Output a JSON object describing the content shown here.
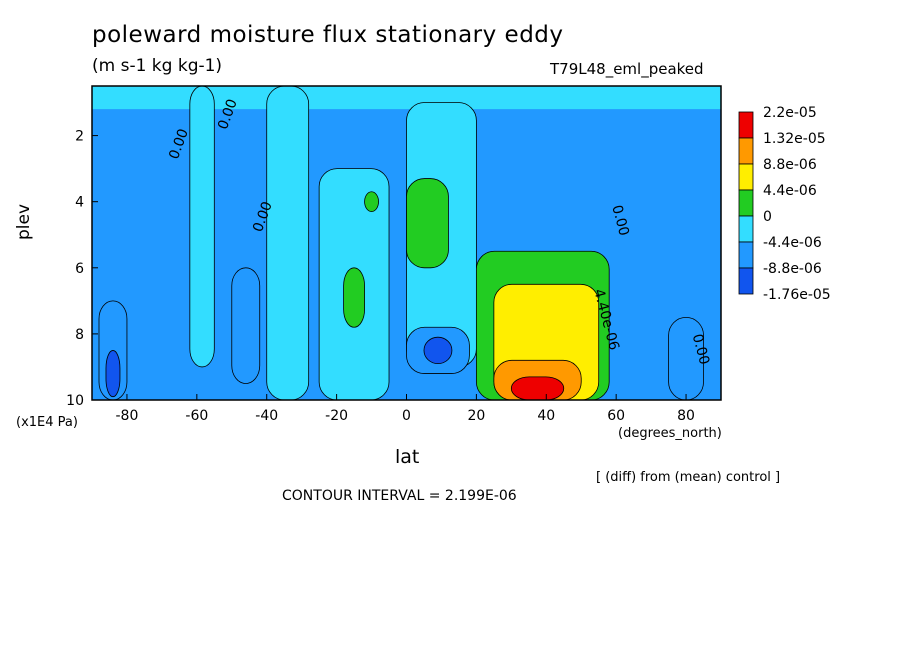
{
  "chart_data": {
    "type": "heatmap",
    "title": "poleward moisture flux stationary eddy",
    "units": "(m s-1 kg kg-1)",
    "experiment": "T79L48_eml_peaked",
    "xlabel": "lat",
    "xunits": "(degrees_north)",
    "ylabel": "plev",
    "yunits": "(x1E4 Pa)",
    "xlim": [
      -90,
      90
    ],
    "ylim": [
      0.5,
      10
    ],
    "y_inverted": true,
    "x_ticks": [
      -80,
      -60,
      -40,
      -20,
      0,
      20,
      40,
      60,
      80
    ],
    "y_ticks": [
      2,
      4,
      6,
      8,
      10
    ],
    "note": "[ (diff) from (mean) control ]",
    "contour_interval": "CONTOUR INTERVAL = 2.199E-06",
    "contour_labels": [
      "0.00",
      "4.40e-06"
    ],
    "legend": {
      "position": "right",
      "levels": [
        "2.2e-05",
        "1.32e-05",
        "8.8e-06",
        "4.4e-06",
        "0",
        "-4.4e-06",
        "-8.8e-06",
        "-1.76e-05"
      ],
      "colors": [
        "#ee0000",
        "#ff9900",
        "#ffee00",
        "#22cc22",
        "#33ddff",
        "#2299ff",
        "#1155ee"
      ],
      "color_classes": [
        "1.32e-05 to 2.2e-05",
        "8.8e-06 to 1.32e-05",
        "4.4e-06 to 8.8e-06",
        "0 to 4.4e-06",
        "-4.4e-06 to 0",
        "-8.8e-06 to -4.4e-06",
        "-1.76e-05 to -8.8e-06"
      ]
    },
    "regions": [
      {
        "level": "positive",
        "lat": [
          -62,
          -55
        ],
        "plev": [
          0.5,
          9
        ]
      },
      {
        "level": "positive",
        "lat": [
          -40,
          -28
        ],
        "plev": [
          0.5,
          10
        ]
      },
      {
        "level": "positive",
        "lat": [
          -25,
          -5
        ],
        "plev": [
          3,
          10
        ]
      },
      {
        "level": "positive",
        "lat": [
          0,
          20
        ],
        "plev": [
          1,
          9
        ]
      },
      {
        "level": "4.4e-06",
        "lat": [
          -12,
          -8
        ],
        "plev": [
          3.7,
          4.3
        ]
      },
      {
        "level": "4.4e-06",
        "lat": [
          -18,
          -12
        ],
        "plev": [
          6,
          7.8
        ]
      },
      {
        "level": "4.4e-06",
        "lat": [
          0,
          12
        ],
        "plev": [
          3.3,
          6
        ]
      },
      {
        "level": "4.4e-06",
        "lat": [
          20,
          58
        ],
        "plev": [
          5.5,
          10
        ]
      },
      {
        "level": "8.8e-06",
        "lat": [
          25,
          55
        ],
        "plev": [
          6.5,
          10
        ]
      },
      {
        "level": "1.32e-05",
        "lat": [
          25,
          50
        ],
        "plev": [
          8.8,
          10
        ]
      },
      {
        "level": "2.2e-05",
        "lat": [
          30,
          45
        ],
        "plev": [
          9.3,
          10
        ]
      },
      {
        "level": "-4.4e-06",
        "lat": [
          -88,
          -80
        ],
        "plev": [
          7,
          10
        ]
      },
      {
        "level": "-8.8e-06",
        "lat": [
          -86,
          -82
        ],
        "plev": [
          8.5,
          9.9
        ]
      },
      {
        "level": "-4.4e-06",
        "lat": [
          -50,
          -42
        ],
        "plev": [
          6,
          9.5
        ]
      },
      {
        "level": "-4.4e-06",
        "lat": [
          0,
          18
        ],
        "plev": [
          7.8,
          9.2
        ]
      },
      {
        "level": "-8.8e-06",
        "lat": [
          5,
          13
        ],
        "plev": [
          8.1,
          8.9
        ]
      },
      {
        "level": "-4.4e-06",
        "lat": [
          75,
          85
        ],
        "plev": [
          7.5,
          10
        ]
      }
    ]
  }
}
